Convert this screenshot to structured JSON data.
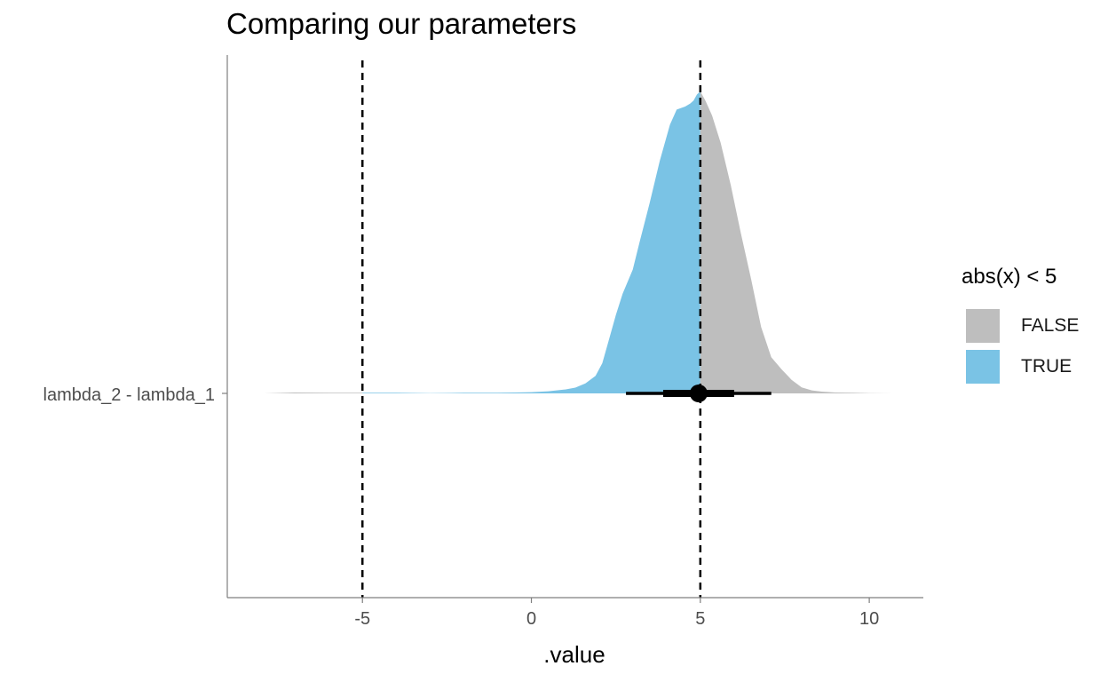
{
  "title": "Comparing our parameters",
  "chart_data": {
    "type": "area",
    "subtype": "halfeye",
    "title": "Comparing our parameters",
    "xlabel": ".value",
    "ylabel": "",
    "xlim": [
      -9,
      11.6
    ],
    "x_ticks": [
      -5,
      0,
      5,
      10
    ],
    "x_tick_labels": [
      "-5",
      "0",
      "5",
      "10"
    ],
    "y_categories": [
      "lambda_2 - lambda_1"
    ],
    "grid": false,
    "legend_position": "right",
    "legend": {
      "title": "abs(x) < 5",
      "entries": [
        {
          "label": "FALSE",
          "color": "#bebebe"
        },
        {
          "label": "TRUE",
          "color": "#7ac3e5"
        }
      ]
    },
    "reference_lines": [
      -5,
      5
    ],
    "density": {
      "x": [
        -7.9,
        -7,
        -6,
        -5,
        -4,
        -3,
        -2,
        -1,
        -0.5,
        0,
        0.5,
        1,
        1.3,
        1.6,
        1.9,
        2.1,
        2.3,
        2.5,
        2.7,
        3,
        3.2,
        3.5,
        3.8,
        4.1,
        4.3,
        4.55,
        4.7,
        4.8,
        4.9,
        5,
        5.15,
        5.35,
        5.6,
        5.9,
        6.2,
        6.5,
        6.8,
        7.1,
        7.4,
        7.7,
        8,
        8.3,
        8.6,
        9,
        9.5,
        10,
        10.7
      ],
      "density_rel": [
        0,
        0.003,
        0.002,
        0.002,
        0.002,
        0.001,
        0.002,
        0.002,
        0.003,
        0.004,
        0.007,
        0.013,
        0.019,
        0.033,
        0.058,
        0.1,
        0.18,
        0.26,
        0.33,
        0.41,
        0.5,
        0.63,
        0.77,
        0.89,
        0.94,
        0.95,
        0.96,
        0.97,
        0.99,
        1.0,
        0.97,
        0.92,
        0.83,
        0.69,
        0.53,
        0.38,
        0.22,
        0.12,
        0.08,
        0.045,
        0.02,
        0.01,
        0.006,
        0.003,
        0.002,
        0.001,
        0
      ]
    },
    "fill_rule": {
      "TRUE": "abs(x) < 5",
      "FALSE": "abs(x) >= 5"
    },
    "interval": {
      "point": 4.95,
      "inner": [
        3.9,
        6.0
      ],
      "outer": [
        2.8,
        7.1
      ]
    }
  }
}
